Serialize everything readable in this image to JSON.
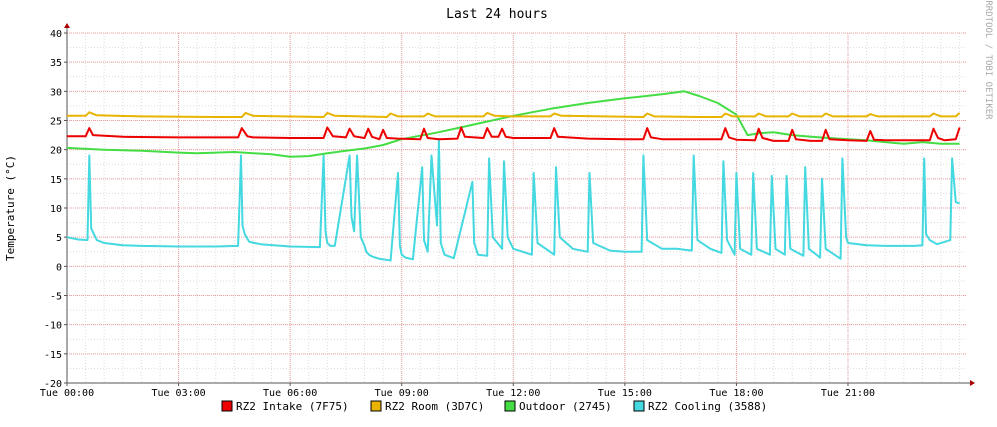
{
  "chart_data": {
    "type": "line",
    "title": "Last 24 hours",
    "ylabel": "Temperature (°C)",
    "side_label": "RRDTOOL / TOBI OETIKER",
    "ylim": [
      -20,
      40
    ],
    "yticks": [
      "40",
      "35",
      "30",
      "25",
      "20",
      "15",
      "10",
      "5",
      "0",
      "-5",
      "-10",
      "-15",
      "-20"
    ],
    "x_range_hours": [
      0,
      24.2
    ],
    "x_tick_hours": [
      0,
      3,
      6,
      9,
      12,
      15,
      18,
      21
    ],
    "x_tick_labels": [
      "Tue 00:00",
      "Tue 03:00",
      "Tue 06:00",
      "Tue 09:00",
      "Tue 12:00",
      "Tue 15:00",
      "Tue 18:00",
      "Tue 21:00"
    ],
    "grid": true,
    "legend_position": "bottom",
    "series": [
      {
        "name": "RZ2 Intake (7F75)",
        "color": "#ee0000",
        "x": [
          0,
          0.5,
          0.6,
          0.7,
          1.5,
          3,
          4,
          4.6,
          4.7,
          4.85,
          5,
          6,
          6.9,
          7.0,
          7.15,
          7.5,
          7.6,
          7.72,
          8.0,
          8.1,
          8.2,
          8.4,
          8.5,
          8.6,
          8.9,
          9.5,
          9.6,
          9.7,
          10,
          10.5,
          10.6,
          10.7,
          11.2,
          11.3,
          11.42,
          11.6,
          11.7,
          11.8,
          12,
          13,
          13.1,
          13.2,
          14,
          15,
          15.5,
          15.6,
          15.7,
          16,
          17,
          17.6,
          17.7,
          17.8,
          18,
          18.5,
          18.6,
          18.7,
          19,
          19.4,
          19.5,
          19.6,
          20,
          20.3,
          20.4,
          20.5,
          21,
          21.5,
          21.6,
          21.7,
          22,
          23.2,
          23.3,
          23.42,
          23.6,
          23.9,
          24.0
        ],
        "values": [
          22.3,
          22.3,
          23.7,
          22.5,
          22.2,
          22.1,
          22.1,
          22.1,
          23.7,
          22.3,
          22.1,
          22.0,
          22.0,
          23.8,
          22.3,
          22.1,
          23.6,
          22.3,
          22.0,
          23.6,
          22.2,
          21.8,
          23.4,
          22.0,
          21.9,
          21.8,
          23.6,
          22.0,
          21.8,
          21.9,
          23.8,
          22.2,
          22.0,
          23.7,
          22.2,
          22.2,
          23.6,
          22.2,
          22.0,
          22.0,
          23.7,
          22.2,
          21.9,
          21.8,
          21.8,
          23.7,
          22.1,
          21.8,
          21.8,
          21.8,
          23.7,
          22.1,
          21.7,
          21.6,
          23.6,
          22.0,
          21.5,
          21.5,
          23.4,
          21.8,
          21.5,
          21.5,
          23.4,
          21.8,
          21.6,
          21.5,
          23.2,
          21.7,
          21.6,
          21.6,
          23.6,
          22.0,
          21.6,
          21.8,
          23.8
        ]
      },
      {
        "name": "RZ2 Room (3D7C)",
        "color": "#e8b400",
        "x": [
          0,
          0.5,
          0.6,
          0.8,
          2,
          4,
          4.7,
          4.8,
          5,
          6.9,
          7.0,
          7.2,
          8.6,
          8.7,
          8.9,
          9.6,
          9.7,
          9.9,
          11.2,
          11.3,
          11.5,
          12,
          13,
          13.1,
          13.3,
          15.5,
          15.6,
          15.8,
          17,
          17.6,
          17.7,
          17.9,
          18.5,
          18.6,
          18.8,
          19.4,
          19.5,
          19.7,
          20.3,
          20.4,
          20.6,
          21.5,
          21.6,
          21.8,
          23.2,
          23.3,
          23.5,
          23.9,
          24.0
        ],
        "values": [
          25.8,
          25.8,
          26.4,
          25.9,
          25.7,
          25.6,
          25.6,
          26.3,
          25.8,
          25.6,
          26.3,
          25.8,
          25.6,
          26.2,
          25.7,
          25.7,
          26.2,
          25.7,
          25.7,
          26.3,
          25.8,
          25.7,
          25.7,
          26.2,
          25.8,
          25.6,
          26.2,
          25.7,
          25.6,
          25.6,
          26.2,
          25.7,
          25.7,
          26.2,
          25.7,
          25.7,
          26.2,
          25.7,
          25.7,
          26.2,
          25.7,
          25.7,
          26.1,
          25.7,
          25.7,
          26.2,
          25.7,
          25.7,
          26.3
        ]
      },
      {
        "name": "Outdoor (2745)",
        "color": "#44dd44",
        "x": [
          0,
          1,
          2,
          3,
          3.5,
          4,
          4.5,
          5,
          5.5,
          6,
          6.5,
          7,
          7.5,
          8,
          8.5,
          9,
          10,
          11,
          12,
          13,
          14,
          15,
          16,
          16.6,
          17,
          17.5,
          18,
          18.3,
          18.6,
          19,
          19.5,
          20,
          20.5,
          21,
          21.5,
          22,
          22.5,
          23,
          23.5,
          24.0
        ],
        "values": [
          20.3,
          20.0,
          19.8,
          19.5,
          19.4,
          19.5,
          19.6,
          19.4,
          19.2,
          18.8,
          18.9,
          19.4,
          19.8,
          20.2,
          20.8,
          21.8,
          23.0,
          24.4,
          25.8,
          27.0,
          28.0,
          28.8,
          29.5,
          30.0,
          29.2,
          28.0,
          26.0,
          22.5,
          22.8,
          23.0,
          22.5,
          22.2,
          22.0,
          21.8,
          21.6,
          21.3,
          21.0,
          21.3,
          21.0,
          21.0
        ]
      },
      {
        "name": "RZ2 Cooling (3588)",
        "color": "#44d8e0",
        "x": [
          0,
          0.3,
          0.55,
          0.6,
          0.65,
          0.8,
          1.0,
          1.5,
          2.0,
          3.0,
          4.0,
          4.6,
          4.68,
          4.72,
          4.78,
          4.9,
          5.2,
          6.0,
          6.8,
          6.9,
          6.95,
          7.0,
          7.08,
          7.2,
          7.6,
          7.65,
          7.72,
          7.8,
          7.9,
          8.0,
          8.05,
          8.12,
          8.2,
          8.4,
          8.7,
          8.9,
          8.95,
          9.0,
          9.1,
          9.3,
          9.55,
          9.6,
          9.7,
          9.8,
          9.95,
          10.0,
          10.05,
          10.15,
          10.4,
          10.9,
          10.95,
          11.05,
          11.3,
          11.35,
          11.45,
          11.7,
          11.75,
          11.85,
          12.0,
          12.5,
          12.55,
          12.65,
          13.1,
          13.15,
          13.25,
          13.6,
          14.0,
          14.05,
          14.15,
          14.6,
          15.0,
          15.45,
          15.5,
          15.6,
          16.0,
          16.4,
          16.8,
          16.85,
          16.95,
          17.3,
          17.6,
          17.65,
          17.75,
          17.95,
          18.0,
          18.1,
          18.4,
          18.45,
          18.55,
          18.9,
          18.95,
          19.05,
          19.3,
          19.35,
          19.45,
          19.8,
          19.85,
          19.95,
          20.25,
          20.3,
          20.4,
          20.8,
          20.85,
          20.95,
          21.0,
          21.5,
          22.0,
          22.8,
          23.0,
          23.05,
          23.1,
          23.2,
          23.4,
          23.75,
          23.8,
          23.9,
          24.0
        ],
        "values": [
          5.0,
          4.6,
          4.5,
          19.0,
          6.5,
          4.5,
          4.0,
          3.6,
          3.5,
          3.4,
          3.4,
          3.5,
          19.0,
          7.0,
          5.5,
          4.2,
          3.8,
          3.4,
          3.3,
          19.0,
          6.0,
          4.0,
          3.5,
          3.5,
          19.0,
          8.5,
          6.0,
          19.0,
          5.0,
          3.5,
          2.5,
          2.0,
          1.7,
          1.3,
          1.0,
          16.0,
          3.5,
          2.0,
          1.5,
          1.2,
          17.0,
          4.5,
          2.5,
          19.0,
          7.0,
          21.8,
          4.0,
          2.0,
          1.4,
          14.5,
          4.0,
          2.0,
          1.8,
          18.5,
          5.0,
          3.0,
          18.0,
          5.0,
          3.0,
          2.0,
          16.0,
          4.0,
          2.0,
          17.0,
          5.0,
          3.0,
          2.5,
          16.0,
          4.0,
          2.7,
          2.5,
          2.5,
          19.0,
          4.5,
          3.0,
          3.0,
          2.7,
          19.0,
          4.5,
          3.0,
          2.3,
          18.0,
          4.5,
          2.0,
          16.0,
          3.0,
          2.0,
          16.0,
          3.0,
          2.0,
          15.5,
          3.0,
          2.0,
          15.5,
          3.0,
          1.8,
          17.0,
          3.0,
          1.5,
          15.0,
          3.0,
          1.3,
          18.5,
          5.0,
          4.0,
          3.6,
          3.5,
          3.5,
          3.6,
          18.5,
          5.5,
          4.5,
          3.8,
          4.5,
          18.5,
          11.0,
          10.8
        ]
      }
    ]
  }
}
